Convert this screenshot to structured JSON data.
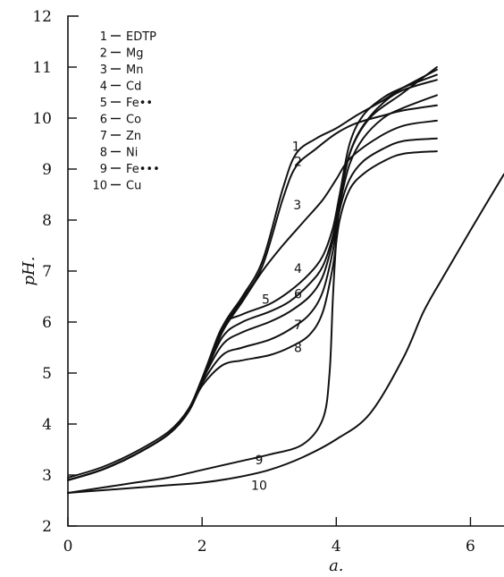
{
  "chart_data": {
    "type": "line",
    "xlabel": "a.",
    "ylabel": "pH.",
    "xlim": [
      0,
      6.5
    ],
    "ylim": [
      2,
      12
    ],
    "x_ticks": [
      0,
      2,
      4,
      6
    ],
    "y_ticks": [
      2,
      3,
      4,
      5,
      6,
      7,
      8,
      9,
      10,
      11,
      12
    ],
    "legend_position": "top-left",
    "legend": [
      {
        "num": "1",
        "name": "EDTP"
      },
      {
        "num": "2",
        "name": "Mg"
      },
      {
        "num": "3",
        "name": "Mn"
      },
      {
        "num": "4",
        "name": "Cd"
      },
      {
        "num": "5",
        "name": "Fe••"
      },
      {
        "num": "6",
        "name": "Co"
      },
      {
        "num": "7",
        "name": "Zn"
      },
      {
        "num": "8",
        "name": "Ni"
      },
      {
        "num": "9",
        "name": "Fe•••"
      },
      {
        "num": "10",
        "name": "Cu"
      }
    ],
    "series": [
      {
        "name": "1",
        "x": [
          0,
          0.5,
          1.0,
          1.5,
          1.8,
          2.0,
          2.3,
          2.6,
          2.9,
          3.2,
          3.4,
          3.7,
          4.0,
          4.3,
          4.7,
          5.0,
          5.5
        ],
        "y": [
          2.95,
          3.15,
          3.45,
          3.85,
          4.3,
          4.9,
          5.9,
          6.5,
          7.2,
          8.6,
          9.3,
          9.6,
          9.8,
          10.05,
          10.35,
          10.6,
          10.95
        ]
      },
      {
        "name": "2",
        "x": [
          0,
          0.5,
          1.0,
          1.5,
          1.8,
          2.0,
          2.3,
          2.6,
          2.9,
          3.2,
          3.4,
          3.7,
          4.0,
          4.3,
          4.7,
          5.0,
          5.5
        ],
        "y": [
          2.9,
          3.1,
          3.4,
          3.8,
          4.25,
          4.85,
          5.85,
          6.45,
          7.1,
          8.4,
          9.05,
          9.4,
          9.7,
          9.9,
          10.05,
          10.15,
          10.25
        ]
      },
      {
        "name": "3",
        "x": [
          0,
          0.5,
          1.0,
          1.5,
          1.8,
          2.0,
          2.3,
          2.6,
          2.9,
          3.2,
          3.5,
          3.8,
          4.0,
          4.2,
          4.6,
          5.0,
          5.5
        ],
        "y": [
          2.9,
          3.1,
          3.4,
          3.8,
          4.25,
          4.85,
          5.8,
          6.4,
          7.0,
          7.5,
          7.95,
          8.4,
          8.8,
          9.2,
          9.6,
          9.85,
          9.95
        ]
      },
      {
        "name": "4",
        "x": [
          0,
          0.5,
          1.0,
          1.5,
          1.8,
          2.0,
          2.3,
          2.6,
          3.0,
          3.3,
          3.6,
          3.8,
          3.95,
          4.05,
          4.2,
          4.4,
          4.7,
          5.0,
          5.5
        ],
        "y": [
          2.9,
          3.1,
          3.4,
          3.8,
          4.25,
          4.85,
          5.9,
          6.15,
          6.35,
          6.6,
          6.95,
          7.3,
          7.85,
          8.5,
          9.5,
          10.05,
          10.4,
          10.6,
          10.85
        ]
      },
      {
        "name": "5",
        "x": [
          0,
          0.5,
          1.0,
          1.5,
          1.8,
          2.0,
          2.3,
          2.6,
          3.0,
          3.3,
          3.6,
          3.8,
          3.95,
          4.05,
          4.2,
          4.4,
          4.7,
          5.0,
          5.5
        ],
        "y": [
          2.9,
          3.1,
          3.4,
          3.8,
          4.25,
          4.85,
          5.7,
          6.0,
          6.2,
          6.4,
          6.75,
          7.1,
          7.7,
          8.4,
          9.3,
          9.85,
          10.3,
          10.55,
          10.75
        ]
      },
      {
        "name": "6",
        "x": [
          0,
          0.5,
          1.0,
          1.5,
          1.8,
          2.0,
          2.3,
          2.6,
          3.0,
          3.3,
          3.6,
          3.8,
          3.95,
          4.05,
          4.2,
          4.4,
          4.7,
          5.0,
          5.5
        ],
        "y": [
          2.9,
          3.1,
          3.4,
          3.8,
          4.25,
          4.85,
          5.55,
          5.8,
          6.0,
          6.2,
          6.5,
          6.9,
          7.6,
          8.3,
          9.1,
          9.6,
          10.0,
          10.2,
          10.45
        ]
      },
      {
        "name": "7",
        "x": [
          0,
          0.5,
          1.0,
          1.5,
          1.8,
          2.0,
          2.3,
          2.6,
          3.0,
          3.3,
          3.6,
          3.8,
          3.95,
          4.05,
          4.2,
          4.4,
          4.7,
          5.0,
          5.5
        ],
        "y": [
          2.9,
          3.1,
          3.4,
          3.8,
          4.25,
          4.8,
          5.35,
          5.5,
          5.65,
          5.85,
          6.15,
          6.6,
          7.4,
          8.2,
          8.8,
          9.15,
          9.4,
          9.55,
          9.6
        ]
      },
      {
        "name": "8",
        "x": [
          0,
          0.5,
          1.0,
          1.5,
          1.8,
          2.0,
          2.3,
          2.6,
          3.0,
          3.3,
          3.6,
          3.8,
          3.95,
          4.05,
          4.2,
          4.4,
          4.7,
          5.0,
          5.5
        ],
        "y": [
          2.9,
          3.1,
          3.4,
          3.8,
          4.25,
          4.75,
          5.15,
          5.25,
          5.35,
          5.5,
          5.75,
          6.2,
          7.1,
          8.0,
          8.6,
          8.9,
          9.15,
          9.3,
          9.35
        ]
      },
      {
        "name": "9",
        "x": [
          0,
          0.5,
          1.0,
          1.5,
          2.0,
          2.5,
          3.0,
          3.5,
          3.8,
          3.9,
          3.95,
          4.0,
          4.05,
          4.2,
          4.5,
          5.0,
          5.5
        ],
        "y": [
          2.65,
          2.75,
          2.85,
          2.95,
          3.1,
          3.25,
          3.4,
          3.6,
          4.1,
          5.0,
          6.5,
          7.6,
          8.3,
          9.3,
          10.0,
          10.5,
          11.0
        ]
      },
      {
        "name": "10",
        "x": [
          0,
          0.5,
          1.0,
          1.5,
          2.0,
          2.5,
          3.0,
          3.5,
          4.0,
          4.5,
          5.0,
          5.3,
          5.6,
          6.0,
          6.5
        ],
        "y": [
          2.65,
          2.7,
          2.75,
          2.8,
          2.85,
          2.95,
          3.1,
          3.35,
          3.7,
          4.2,
          5.3,
          6.2,
          6.9,
          7.8,
          8.9
        ]
      }
    ],
    "curve_labels": [
      {
        "text": "1",
        "x": 3.4,
        "y": 9.45
      },
      {
        "text": "2",
        "x": 3.43,
        "y": 9.15
      },
      {
        "text": "3",
        "x": 3.42,
        "y": 8.3
      },
      {
        "text": "4",
        "x": 3.43,
        "y": 7.05
      },
      {
        "text": "5",
        "x": 2.95,
        "y": 6.45
      },
      {
        "text": "6",
        "x": 3.43,
        "y": 6.55
      },
      {
        "text": "7",
        "x": 3.43,
        "y": 5.95
      },
      {
        "text": "8",
        "x": 3.43,
        "y": 5.5
      },
      {
        "text": "9",
        "x": 2.85,
        "y": 3.3
      },
      {
        "text": "10",
        "x": 2.85,
        "y": 2.8
      }
    ]
  }
}
